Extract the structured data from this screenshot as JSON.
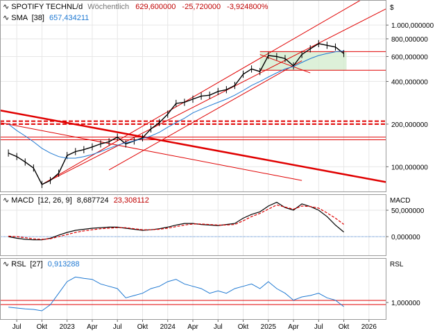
{
  "colors": {
    "up": "#000000",
    "down": "#000000",
    "sma": "#1e78d2",
    "trend": "#e00000",
    "zone": "#d4ecd0",
    "grid": "#e6e6e6",
    "macd": "#000000",
    "signal": "#e00000",
    "rsl": "#1e78d2"
  },
  "header": {
    "symbol": "SPOTIFY TECHNL/d",
    "interval": "Wöchentlich",
    "last": "629,600000",
    "change": "-25,720000",
    "change_pct": "-3,924800%"
  },
  "sma_legend": {
    "name": "SMA",
    "param": "[38]",
    "value": "657,434211"
  },
  "macd_legend": {
    "name": "MACD",
    "param": "[12, 26, 9]",
    "value1": "8,687724",
    "value2": "23,308112"
  },
  "rsl_legend": {
    "name": "RSL",
    "param": "[27]",
    "value": "0,913288"
  },
  "axis": {
    "currency": "$",
    "price_ticks": [
      {
        "label": "1.000,000000",
        "value": 1000
      },
      {
        "label": "800,000000",
        "value": 800
      },
      {
        "label": "600,000000",
        "value": 600
      },
      {
        "label": "400,000000",
        "value": 400
      },
      {
        "label": "200,000000",
        "value": 200
      },
      {
        "label": "100,000000",
        "value": 100
      }
    ],
    "macd_title": "MACD",
    "macd_ticks": [
      {
        "label": "50,000000",
        "value": 50
      },
      {
        "label": "0,000000",
        "value": 0
      }
    ],
    "rsl_title": "RSL",
    "rsl_ticks": [
      {
        "label": "1,000000",
        "value": 1.0
      }
    ],
    "x_ticks": [
      {
        "label": "Jul",
        "date": "2022-07"
      },
      {
        "label": "Okt",
        "date": "2022-10"
      },
      {
        "label": "2023",
        "date": "2023-01"
      },
      {
        "label": "Apr",
        "date": "2023-04"
      },
      {
        "label": "Jul",
        "date": "2023-07"
      },
      {
        "label": "Okt",
        "date": "2023-10"
      },
      {
        "label": "2024",
        "date": "2024-01"
      },
      {
        "label": "Apr",
        "date": "2024-04"
      },
      {
        "label": "Jul",
        "date": "2024-07"
      },
      {
        "label": "Okt",
        "date": "2024-10"
      },
      {
        "label": "2025",
        "date": "2025-01"
      },
      {
        "label": "Apr",
        "date": "2025-04"
      },
      {
        "label": "Jul",
        "date": "2025-07"
      },
      {
        "label": "Okt",
        "date": "2025-10"
      },
      {
        "label": "2026",
        "date": "2026-01"
      }
    ]
  },
  "chart_data": {
    "type": "line",
    "scale": "log",
    "grid": true,
    "x": [
      "2022-06",
      "2022-07",
      "2022-08",
      "2022-09",
      "2022-10",
      "2022-11",
      "2022-12",
      "2023-01",
      "2023-02",
      "2023-03",
      "2023-04",
      "2023-05",
      "2023-06",
      "2023-07",
      "2023-08",
      "2023-09",
      "2023-10",
      "2023-11",
      "2023-12",
      "2024-01",
      "2024-02",
      "2024-03",
      "2024-04",
      "2024-05",
      "2024-06",
      "2024-07",
      "2024-08",
      "2024-09",
      "2024-10",
      "2024-11",
      "2024-12",
      "2025-01",
      "2025-02",
      "2025-03",
      "2025-04",
      "2025-05",
      "2025-06",
      "2025-07",
      "2025-08",
      "2025-09",
      "2025-10"
    ],
    "ylim": [
      70,
      1200
    ],
    "series": [
      {
        "role": "price",
        "values": [
          125,
          118,
          108,
          98,
          75,
          80,
          90,
          120,
          128,
          132,
          138,
          145,
          150,
          162,
          145,
          152,
          160,
          185,
          205,
          235,
          280,
          285,
          300,
          315,
          320,
          340,
          350,
          375,
          450,
          490,
          470,
          610,
          600,
          580,
          515,
          620,
          680,
          740,
          720,
          700,
          629.6
        ]
      },
      {
        "role": "sma38",
        "values": [
          200,
          180,
          165,
          150,
          135,
          125,
          118,
          115,
          115,
          118,
          122,
          128,
          135,
          142,
          148,
          152,
          158,
          165,
          175,
          190,
          205,
          220,
          240,
          255,
          270,
          285,
          300,
          320,
          345,
          375,
          400,
          430,
          460,
          490,
          510,
          545,
          580,
          610,
          630,
          648,
          657.43
        ]
      }
    ],
    "support_lines": [
      200,
      210
    ],
    "resistance_lines": [
      155,
      162
    ],
    "zone": {
      "low": 480,
      "high": 650,
      "start": "2024-12",
      "end": "2025-10"
    },
    "macd": {
      "ylim": [
        -30,
        75
      ],
      "macd": [
        0,
        -3,
        -5,
        -6,
        -6,
        -3,
        3,
        8,
        12,
        14,
        16,
        17,
        18,
        18,
        16,
        14,
        12,
        13,
        15,
        18,
        22,
        25,
        25,
        23,
        22,
        21,
        23,
        25,
        35,
        42,
        47,
        58,
        65,
        55,
        50,
        62,
        57,
        50,
        38,
        22,
        8.69
      ],
      "signal": [
        1,
        0,
        -2,
        -4,
        -5,
        -4,
        0,
        4,
        8,
        11,
        13,
        15,
        16,
        17,
        17,
        15,
        13,
        13,
        14,
        16,
        19,
        22,
        24,
        24,
        23,
        22,
        22,
        23,
        30,
        38,
        44,
        52,
        60,
        56,
        52,
        58,
        57,
        54,
        45,
        35,
        23.31
      ]
    },
    "rsl": {
      "ylim": [
        0.7,
        1.9
      ],
      "values": [
        0.9,
        0.88,
        0.86,
        0.85,
        0.82,
        0.95,
        1.2,
        1.45,
        1.55,
        1.52,
        1.5,
        1.4,
        1.35,
        1.3,
        1.1,
        1.15,
        1.2,
        1.3,
        1.35,
        1.45,
        1.5,
        1.4,
        1.35,
        1.3,
        1.2,
        1.25,
        1.2,
        1.3,
        1.35,
        1.4,
        1.3,
        1.45,
        1.3,
        1.2,
        1.05,
        1.12,
        1.15,
        1.2,
        1.1,
        1.05,
        0.91
      ]
    }
  }
}
